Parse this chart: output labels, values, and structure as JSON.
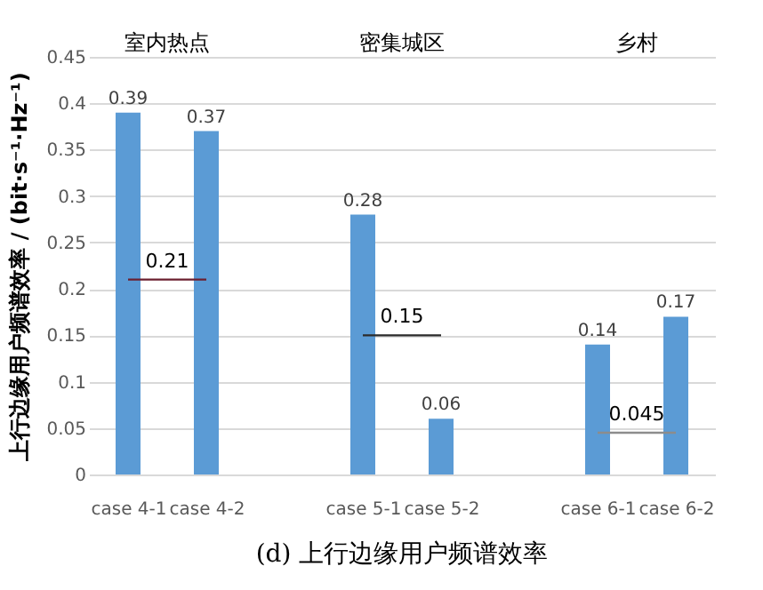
{
  "chart_data": {
    "type": "bar",
    "title": "(d) 上行边缘用户频谱效率",
    "ylabel": "上行边缘用户频谱效率 / (bit·s⁻¹·Hz⁻¹)",
    "categories": [
      "case 4-1",
      "case 4-2",
      null,
      "case 5-1",
      "case 5-2",
      null,
      "case 6-1",
      "case 6-2"
    ],
    "series": [
      {
        "color": "#5b9bd5",
        "values": [
          0.39,
          0.37,
          null,
          0.28,
          0.06,
          null,
          0.14,
          0.17
        ],
        "value_labels": [
          "0.39",
          "0.37",
          null,
          "0.28",
          "0.06",
          null,
          "0.14",
          "0.17"
        ]
      },
      {
        "type": "line",
        "color": "#6b1f2f",
        "values": [
          0.21,
          0.21,
          null,
          null,
          null,
          null,
          null,
          null
        ]
      },
      {
        "type": "line",
        "color": "#2b2b2b",
        "values": [
          null,
          null,
          null,
          0.15,
          0.15,
          null,
          null,
          null
        ]
      },
      {
        "type": "line",
        "color": "#8c8c8c",
        "values": [
          null,
          null,
          null,
          null,
          null,
          null,
          0.045,
          0.045
        ]
      }
    ],
    "annotations": [
      {
        "text": "0.21",
        "x": "case 4-1",
        "y": 0.21
      },
      {
        "text": "0.15",
        "x": "case 5-1",
        "y": 0.15
      },
      {
        "text": "0.045",
        "x": "case 6-1",
        "y": 0.045
      },
      "室内热点",
      "密集城区",
      "乡村"
    ],
    "ylim": [
      0,
      0.45
    ],
    "yticks": [
      0,
      0.05,
      0.1,
      0.15,
      0.2,
      0.25,
      0.3,
      0.35,
      0.4,
      0.45
    ],
    "grid": "y"
  }
}
